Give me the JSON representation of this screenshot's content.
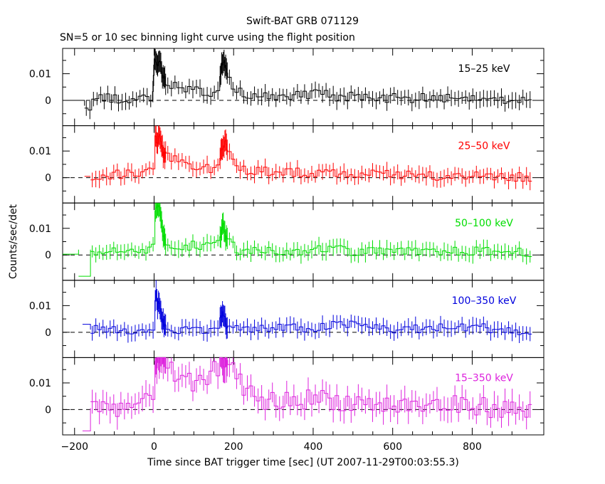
{
  "title": "Swift-BAT GRB 071129",
  "subtitle": "SN=5 or 10 sec binning light curve using the flight position",
  "chart_data": {
    "type": "line",
    "style": "step histogram with error bars, 5 stacked panels sharing the x axis",
    "xlabel": "Time since BAT trigger time [sec] (UT 2007-11-29T00:03:55.3)",
    "ylabel": "Counts/sec/det",
    "xlim": [
      -230,
      980
    ],
    "ylim": [
      -0.0095,
      0.0195
    ],
    "x_ticks": [
      -200,
      0,
      200,
      400,
      600,
      800
    ],
    "x_tick_labels": [
      "−200",
      "0",
      "200",
      "400",
      "600",
      "800"
    ],
    "y_ticks": [
      0,
      0.01
    ],
    "y_tick_labels": [
      "0",
      "0.01"
    ],
    "zero_line": "dashed",
    "panels": [
      {
        "band": "15–25 keV",
        "color": "#000000",
        "n_fluct": 3,
        "pre": [
          [
            -230,
            -175,
            0.0
          ]
        ],
        "points": [
          [
            -175,
            -0.002
          ],
          [
            -160,
            -0.002
          ],
          [
            -150,
            0.002
          ],
          [
            -130,
            0.001
          ],
          [
            -100,
            0.0005
          ],
          [
            -60,
            0.0005
          ],
          [
            -30,
            0.0015
          ],
          [
            -10,
            0.001
          ],
          [
            -3,
            0.004
          ],
          [
            0,
            0.016
          ],
          [
            5,
            0.013
          ],
          [
            12,
            0.015
          ],
          [
            18,
            0.011
          ],
          [
            25,
            0.008
          ],
          [
            40,
            0.006
          ],
          [
            60,
            0.004
          ],
          [
            80,
            0.004
          ],
          [
            100,
            0.0035
          ],
          [
            120,
            0.003
          ],
          [
            140,
            0.003
          ],
          [
            155,
            0.0035
          ],
          [
            165,
            0.009
          ],
          [
            172,
            0.016
          ],
          [
            178,
            0.012
          ],
          [
            190,
            0.005
          ],
          [
            205,
            0.0035
          ],
          [
            230,
            0.002
          ],
          [
            260,
            0.0015
          ],
          [
            300,
            0.0015
          ],
          [
            350,
            0.0015
          ],
          [
            420,
            0.0025
          ],
          [
            460,
            0.001
          ],
          [
            500,
            0.0015
          ],
          [
            600,
            0.0008
          ],
          [
            700,
            0.0008
          ],
          [
            800,
            0.0008
          ],
          [
            950,
            0.0005
          ]
        ],
        "noise": 0.0018
      },
      {
        "band": "25–50 keV",
        "color": "#ff0000",
        "n_fluct": 3,
        "pre": [
          [
            -175,
            -160,
            0.0005
          ]
        ],
        "points": [
          [
            -160,
            0.0005
          ],
          [
            -100,
            0.001
          ],
          [
            -40,
            0.002
          ],
          [
            -8,
            0.002
          ],
          [
            -3,
            0.009
          ],
          [
            0,
            0.016
          ],
          [
            8,
            0.014
          ],
          [
            15,
            0.016
          ],
          [
            22,
            0.009
          ],
          [
            35,
            0.007
          ],
          [
            60,
            0.006
          ],
          [
            80,
            0.004
          ],
          [
            100,
            0.0035
          ],
          [
            140,
            0.0035
          ],
          [
            160,
            0.005
          ],
          [
            170,
            0.011
          ],
          [
            178,
            0.013
          ],
          [
            190,
            0.007
          ],
          [
            205,
            0.005
          ],
          [
            230,
            0.003
          ],
          [
            260,
            0.0025
          ],
          [
            320,
            0.002
          ],
          [
            400,
            0.002
          ],
          [
            500,
            0.0015
          ],
          [
            600,
            0.0008
          ],
          [
            700,
            0.0005
          ],
          [
            800,
            0.0005
          ],
          [
            950,
            0.0003
          ]
        ],
        "noise": 0.0018
      },
      {
        "band": "50–100 keV",
        "color": "#00dd00",
        "n_fluct": 3,
        "pre": [
          [
            -230,
            -190,
            0.0003
          ],
          [
            -190,
            -160,
            -0.008
          ]
        ],
        "points": [
          [
            -160,
            0.002
          ],
          [
            -130,
            0.0005
          ],
          [
            -80,
            0.0015
          ],
          [
            -40,
            0.0015
          ],
          [
            -10,
            0.002
          ],
          [
            -3,
            0.009
          ],
          [
            0,
            0.016
          ],
          [
            8,
            0.018
          ],
          [
            15,
            0.016
          ],
          [
            25,
            0.005
          ],
          [
            40,
            0.004
          ],
          [
            80,
            0.0035
          ],
          [
            120,
            0.0035
          ],
          [
            150,
            0.004
          ],
          [
            165,
            0.006
          ],
          [
            172,
            0.011
          ],
          [
            180,
            0.006
          ],
          [
            205,
            0.002
          ],
          [
            250,
            0.0015
          ],
          [
            350,
            0.0015
          ],
          [
            430,
            0.0025
          ],
          [
            465,
            0.005
          ],
          [
            480,
            0.001
          ],
          [
            560,
            0.0012
          ],
          [
            700,
            0.001
          ],
          [
            800,
            0.0015
          ],
          [
            950,
            0.001
          ]
        ],
        "noise": 0.0017
      },
      {
        "band": "100–350 keV",
        "color": "#0000dd",
        "n_fluct": 3,
        "pre": [
          [
            -180,
            -160,
            0.003
          ]
        ],
        "points": [
          [
            -160,
            0.001
          ],
          [
            -120,
            0.0005
          ],
          [
            -60,
            0.0005
          ],
          [
            -10,
            0.0005
          ],
          [
            -3,
            0.004
          ],
          [
            0,
            0.008
          ],
          [
            4,
            0.014
          ],
          [
            8,
            0.01
          ],
          [
            12,
            0.012
          ],
          [
            20,
            0.004
          ],
          [
            35,
            0.001
          ],
          [
            80,
            0.001
          ],
          [
            150,
            0.0015
          ],
          [
            165,
            0.004
          ],
          [
            172,
            0.008
          ],
          [
            182,
            0.002
          ],
          [
            220,
            0.001
          ],
          [
            300,
            0.0015
          ],
          [
            400,
            0.0015
          ],
          [
            470,
            0.003
          ],
          [
            520,
            0.0025
          ],
          [
            600,
            0.001
          ],
          [
            700,
            0.0015
          ],
          [
            800,
            0.002
          ],
          [
            880,
            0.001
          ],
          [
            950,
            -0.001
          ]
        ],
        "noise": 0.0017
      },
      {
        "band": "15–350 keV",
        "color": "#dd22dd",
        "n_fluct": 3,
        "pre": [
          [
            -180,
            -160,
            -0.008
          ]
        ],
        "points": [
          [
            -160,
            0.0005
          ],
          [
            -120,
            0.002
          ],
          [
            -80,
            0.0005
          ],
          [
            -50,
            0.0025
          ],
          [
            -10,
            0.002
          ],
          [
            -3,
            0.008
          ],
          [
            0,
            0.016
          ],
          [
            8,
            0.02
          ],
          [
            18,
            0.022
          ],
          [
            30,
            0.017
          ],
          [
            50,
            0.011
          ],
          [
            80,
            0.01
          ],
          [
            110,
            0.009
          ],
          [
            140,
            0.013
          ],
          [
            155,
            0.016
          ],
          [
            170,
            0.02
          ],
          [
            180,
            0.019
          ],
          [
            200,
            0.012
          ],
          [
            220,
            0.008
          ],
          [
            250,
            0.004
          ],
          [
            300,
            0.003
          ],
          [
            350,
            0.0035
          ],
          [
            420,
            0.0045
          ],
          [
            470,
            0.003
          ],
          [
            520,
            0.0025
          ],
          [
            600,
            0.0015
          ],
          [
            700,
            0.0015
          ],
          [
            800,
            0.0015
          ],
          [
            950,
            -0.001
          ]
        ],
        "noise": 0.0038
      }
    ]
  }
}
